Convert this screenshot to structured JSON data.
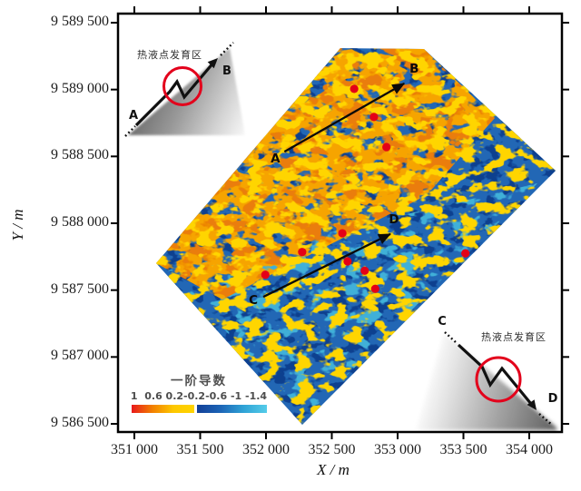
{
  "chart_data": {
    "type": "heatmap",
    "xlabel": "X / m",
    "ylabel": "Y / m",
    "xlim": [
      351000,
      354000
    ],
    "ylim": [
      9586500,
      9589500
    ],
    "x_tick_values": [
      351000,
      351500,
      352000,
      352500,
      353000,
      353500,
      354000
    ],
    "x_tick_labels": [
      "351 000",
      "351 500",
      "352 000",
      "352 500",
      "353 000",
      "353 500",
      "354 000"
    ],
    "y_tick_values": [
      9589500,
      9589000,
      9588500,
      9588000,
      9587500,
      9587000,
      9586500
    ],
    "y_tick_labels": [
      "9 589 500",
      "9 589 000",
      "9 588 500",
      "9 588 000",
      "9 587 500",
      "9 587 000",
      "9 586 500"
    ],
    "grid": false,
    "legend": {
      "title": "一阶导数",
      "tick_text": "1  0.6 0.2-0.2-0.6 -1 -1.4",
      "tick_values": [
        1,
        0.6,
        0.2,
        -0.2,
        -0.6,
        -1,
        -1.4
      ],
      "position": "lower-left",
      "warm_colors": [
        "#e8191c",
        "#f28000",
        "#fdc800",
        "#ffd400"
      ],
      "cool_colors": [
        "#123f97",
        "#1c64b6",
        "#2fa3d6",
        "#55cce9"
      ]
    },
    "map_colors": {
      "base_blue": "#2267b5",
      "dark_blue": "#0c3f8f",
      "cyan": "#3fb0d8",
      "orange": "#f6a405",
      "deep_orange": "#ea7d07",
      "yellow": "#ffd503"
    },
    "point_color": "#e40017",
    "hydrothermal_points": [
      [
        352670,
        9589005
      ],
      [
        352820,
        9588795
      ],
      [
        352915,
        9588570
      ],
      [
        352580,
        9587925
      ],
      [
        352275,
        9587785
      ],
      [
        352620,
        9587715
      ],
      [
        352750,
        9587645
      ],
      [
        351995,
        9587615
      ],
      [
        352830,
        9587510
      ],
      [
        353515,
        9587775
      ]
    ],
    "profiles": [
      {
        "start_label": "A",
        "end_label": "B",
        "from": [
          352140,
          9588535
        ],
        "to": [
          353050,
          9589045
        ]
      },
      {
        "start_label": "C",
        "end_label": "D",
        "from": [
          351980,
          9587450
        ],
        "to": [
          352945,
          9587920
        ]
      }
    ],
    "insets": [
      {
        "position": "top-left",
        "zone_label": "热液点发育区",
        "start_label": "A",
        "end_label": "B"
      },
      {
        "position": "bottom-right",
        "zone_label": "热液点发育区",
        "start_label": "C",
        "end_label": "D"
      }
    ]
  }
}
